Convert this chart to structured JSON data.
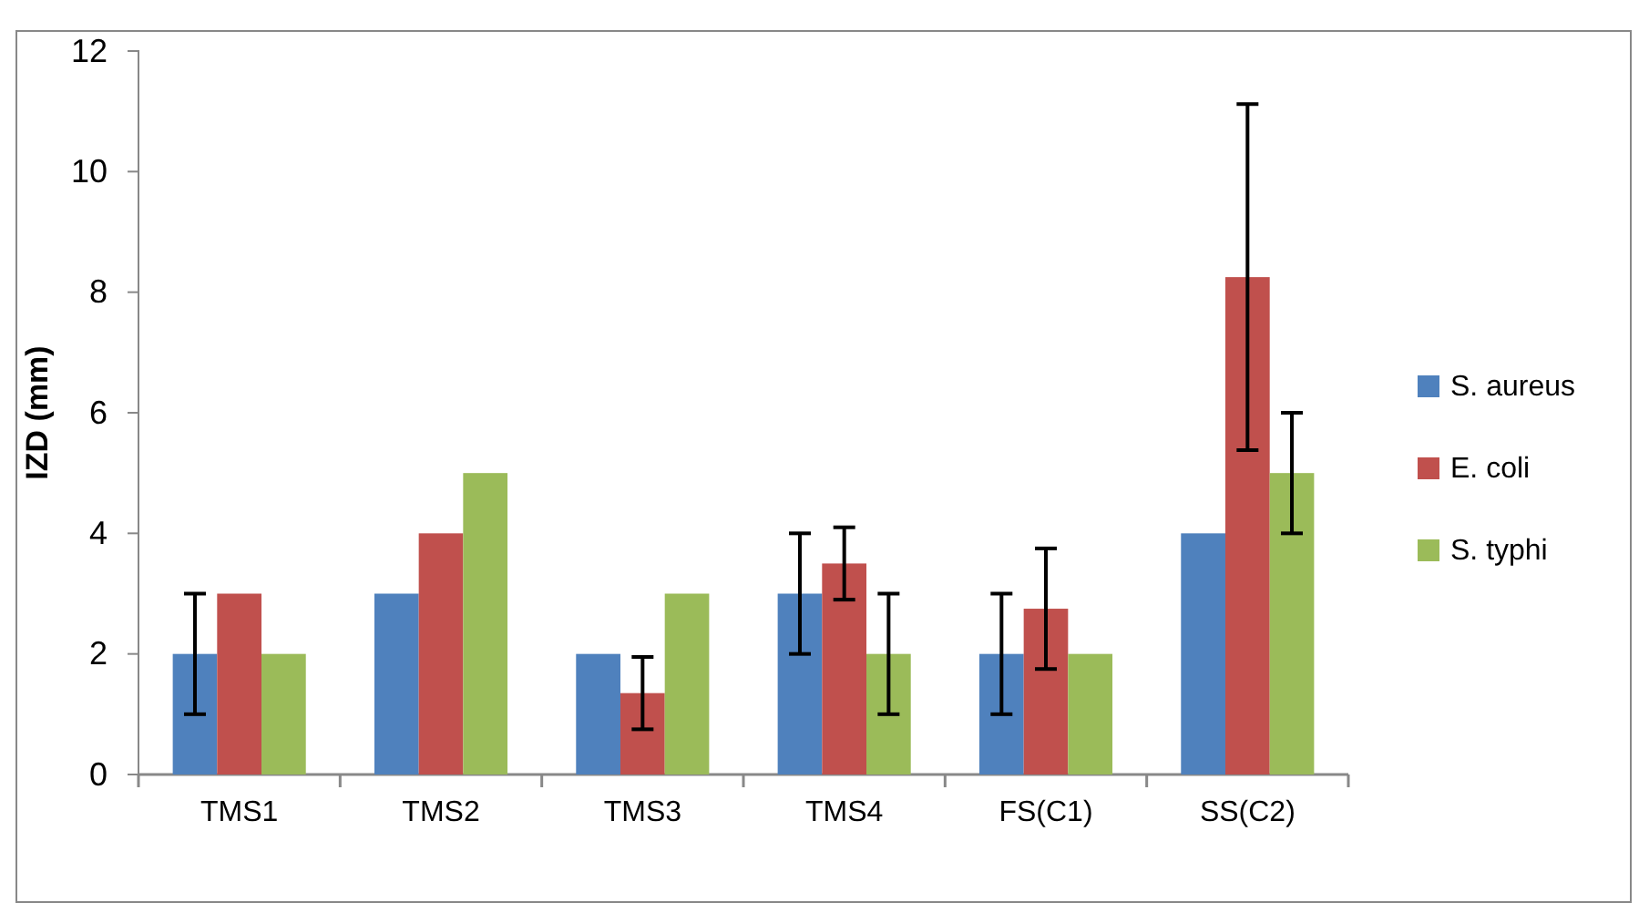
{
  "chart_data": {
    "type": "bar",
    "ylabel": "IZD (mm)",
    "categories": [
      "TMS1",
      "TMS2",
      "TMS3",
      "TMS4",
      "FS(C1)",
      "SS(C2)"
    ],
    "series": [
      {
        "name": "S. aureus",
        "color": "#4f81bd",
        "values": [
          2,
          3,
          2,
          3,
          2,
          4
        ],
        "errors": [
          1,
          null,
          null,
          1,
          1,
          null
        ]
      },
      {
        "name": "E. coli",
        "color": "#c0504d",
        "values": [
          3,
          4,
          1.35,
          3.5,
          2.75,
          8.25
        ],
        "errors": [
          null,
          null,
          0.6,
          0.6,
          1,
          2.87
        ]
      },
      {
        "name": "S. typhi",
        "color": "#9bbb59",
        "values": [
          2,
          5,
          3,
          2,
          2,
          5
        ],
        "errors": [
          null,
          null,
          null,
          1,
          null,
          1
        ]
      }
    ],
    "ylim": [
      0,
      12
    ],
    "yticks": [
      0,
      2,
      4,
      6,
      8,
      10,
      12
    ],
    "grid": false,
    "legend": "right"
  }
}
